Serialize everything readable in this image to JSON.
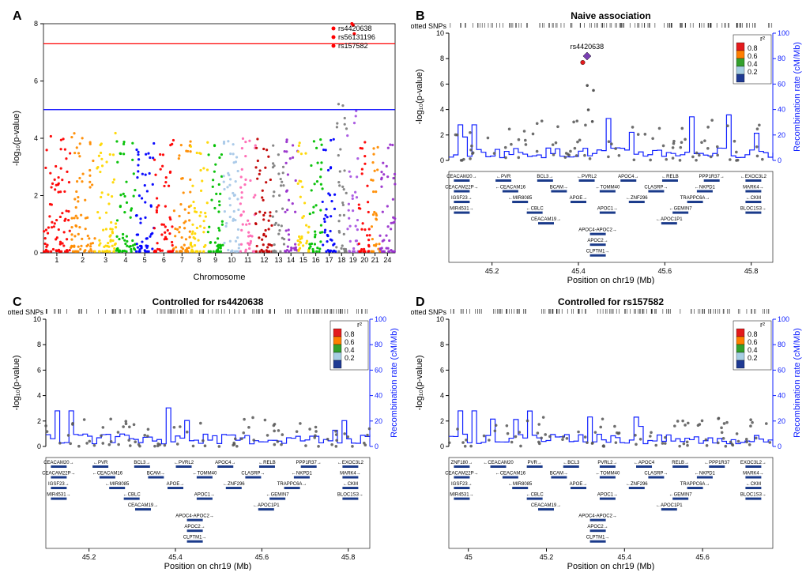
{
  "panelA": {
    "label": "A",
    "type": "manhattan",
    "ylabel": "-log₁₀(p-value)",
    "xlabel": "Chromosome",
    "ylim": [
      0,
      8
    ],
    "ytick_step": 2,
    "sig_line_y": 7.3,
    "sig_line_color": "#ff0000",
    "sugg_line_y": 5.0,
    "sugg_line_color": "#0000ff",
    "top_snps": [
      "rs4420638",
      "rs56131196",
      "rs157582"
    ],
    "top_snp_color": "#ff0000",
    "chromosomes": [
      "1",
      "2",
      "3",
      "4",
      "5",
      "6",
      "7",
      "8",
      "9",
      "10",
      "11",
      "12",
      "13",
      "14",
      "15",
      "16",
      "17",
      "18",
      "19",
      "20",
      "21",
      "24"
    ],
    "chr_colors": [
      "#ff0000",
      "#ff8c00",
      "#ffd700",
      "#00c000",
      "#0000ff",
      "#ff0000",
      "#ff8c00",
      "#ffd700",
      "#00c000",
      "#a8c8e8",
      "#ff69b4",
      "#c00000",
      "#808080",
      "#9932cc",
      "#ffd700",
      "#00c000",
      "#0000ff",
      "#808080",
      "#a855e0",
      "#ff0000",
      "#ff8c00",
      "#9932cc"
    ],
    "chr_widths": [
      28,
      26,
      22,
      20,
      20,
      20,
      18,
      18,
      16,
      18,
      16,
      18,
      12,
      14,
      12,
      14,
      14,
      12,
      12,
      12,
      10,
      16
    ],
    "chr_max_y": [
      4.5,
      4.3,
      4.2,
      4.2,
      4.0,
      4.1,
      4.2,
      4.1,
      4.0,
      4.0,
      4.2,
      4.1,
      3.9,
      4.0,
      3.9,
      4.1,
      4.0,
      5.2,
      5.0,
      4.0,
      3.8,
      4.1
    ]
  },
  "locuszoom_common": {
    "ylabel": "-log₁₀(p-value)",
    "y2label": "Recombination rate (cM/Mb)",
    "xlabel": "Position on chr19 (Mb)",
    "ylim": [
      0,
      10
    ],
    "y2lim": [
      0,
      100
    ],
    "plotted_snps_label": "Plotted SNPs",
    "r2_label": "r²",
    "r2_colors": [
      "#e31a1c",
      "#ff7f00",
      "#33a02c",
      "#a6cee3",
      "#1f3a93"
    ],
    "r2_values": [
      "0.8",
      "0.6",
      "0.4",
      "0.2"
    ],
    "recomb_color": "#1020ff",
    "genes_row1": [
      "CEACAM20",
      "PVR",
      "BCL3",
      "PVRL2",
      "APOC4",
      "RELB",
      "PPP1R37",
      "EXOC3L2"
    ],
    "genes_row2": [
      "CEACAM22P",
      "CEACAM16",
      "BCAM",
      "TOMM40",
      "CLASRP",
      "NKPD1",
      "MARK4"
    ],
    "genes_row3": [
      "IGSF23",
      "MIR8085",
      "APOE",
      "ZNF296",
      "TRAPPC6A",
      "CKM"
    ],
    "genes_row4": [
      "MIR4531",
      "CBLC",
      "APOC1",
      "GEMIN7",
      "BLOC1S3"
    ],
    "genes_row5": [
      "CEACAM19",
      "APOC1P1"
    ],
    "genes_row6": [
      "APOC4-APOC2"
    ],
    "genes_row7": [
      "APOC2"
    ],
    "genes_row8": [
      "CLPTM1"
    ]
  },
  "panelB": {
    "label": "B",
    "title": "Naive association",
    "xticks": [
      "45.2",
      "45.4",
      "45.6",
      "45.8"
    ],
    "xlim": [
      45.1,
      45.85
    ],
    "lead_snp": "rs4420638",
    "lead_y": 8.2,
    "lead_x": 45.42,
    "lead2_y": 7.7,
    "lead2_x": 45.41
  },
  "panelC": {
    "label": "C",
    "title": "Controlled for rs4420638",
    "xticks": [
      "45.2",
      "45.4",
      "45.6",
      "45.8"
    ],
    "xlim": [
      45.1,
      45.85
    ]
  },
  "panelD": {
    "label": "D",
    "title": "Controlled for rs157582",
    "xticks": [
      "45",
      "45.2",
      "45.4",
      "45.6"
    ],
    "xlim": [
      44.95,
      45.78
    ],
    "extra_genes": [
      "ZNF180"
    ]
  }
}
